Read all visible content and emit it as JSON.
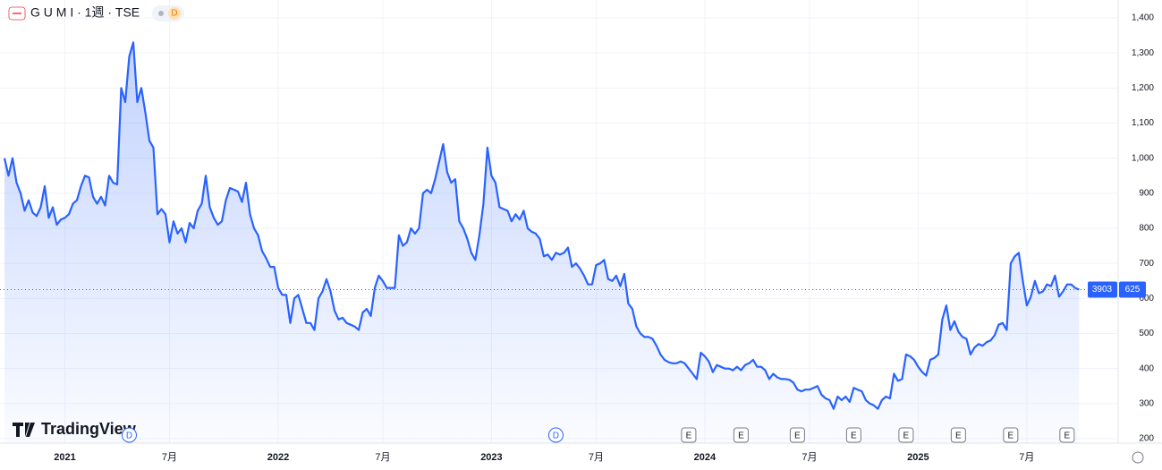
{
  "chart_data": {
    "type": "line",
    "title": "G U M I · 1週 · TSE",
    "interval_badge": "D",
    "symbol_code": "3903",
    "brand": "TradingView",
    "color": "#2962ff",
    "grid": true,
    "values": [
      1000,
      950,
      1000,
      930,
      900,
      850,
      880,
      845,
      835,
      860,
      920,
      830,
      860,
      810,
      825,
      830,
      840,
      870,
      880,
      920,
      950,
      945,
      890,
      870,
      890,
      865,
      950,
      930,
      925,
      1200,
      1160,
      1290,
      1330,
      1160,
      1200,
      1130,
      1050,
      1030,
      840,
      855,
      840,
      760,
      820,
      785,
      800,
      760,
      815,
      800,
      850,
      870,
      950,
      860,
      830,
      810,
      820,
      880,
      915,
      910,
      905,
      875,
      930,
      840,
      800,
      780,
      735,
      715,
      690,
      690,
      630,
      610,
      610,
      530,
      600,
      610,
      570,
      530,
      530,
      510,
      600,
      620,
      655,
      620,
      565,
      540,
      545,
      530,
      525,
      520,
      510,
      560,
      570,
      550,
      630,
      665,
      650,
      630,
      630,
      630,
      780,
      750,
      760,
      800,
      785,
      800,
      900,
      910,
      900,
      940,
      990,
      1040,
      960,
      930,
      940,
      820,
      800,
      770,
      730,
      710,
      780,
      870,
      1030,
      950,
      930,
      860,
      855,
      850,
      820,
      840,
      825,
      850,
      800,
      790,
      785,
      770,
      720,
      725,
      710,
      730,
      725,
      730,
      745,
      690,
      700,
      685,
      665,
      640,
      640,
      695,
      700,
      710,
      655,
      650,
      665,
      635,
      670,
      585,
      570,
      520,
      500,
      490,
      490,
      485,
      465,
      440,
      425,
      418,
      415,
      415,
      420,
      415,
      400,
      385,
      370,
      445,
      435,
      420,
      390,
      410,
      405,
      400,
      400,
      395,
      405,
      395,
      410,
      415,
      425,
      405,
      405,
      395,
      370,
      385,
      375,
      370,
      370,
      368,
      360,
      340,
      335,
      340,
      340,
      345,
      350,
      325,
      315,
      310,
      285,
      320,
      310,
      320,
      305,
      345,
      340,
      335,
      310,
      300,
      295,
      285,
      310,
      320,
      315,
      385,
      365,
      370,
      440,
      435,
      425,
      405,
      390,
      380,
      425,
      430,
      440,
      540,
      580,
      510,
      535,
      505,
      490,
      485,
      440,
      460,
      470,
      465,
      475,
      480,
      495,
      525,
      530,
      510,
      700,
      720,
      730,
      650,
      580,
      605,
      650,
      615,
      620,
      640,
      635,
      665,
      605,
      620,
      640,
      640,
      630,
      625
    ],
    "last_value": 625,
    "ylim": [
      200,
      1400
    ],
    "yticks": [
      200,
      300,
      400,
      500,
      600,
      700,
      800,
      900,
      {
        "value": 1000,
        "label": "1,000"
      },
      {
        "value": 1100,
        "label": "1,100"
      },
      {
        "value": 1200,
        "label": "1,200"
      },
      {
        "value": 1300,
        "label": "1,300"
      },
      {
        "value": 1400,
        "label": "1,400"
      }
    ],
    "xlim": [
      0,
      276.7
    ],
    "xticks": [
      {
        "value": 15,
        "label": "2021"
      },
      {
        "value": 41,
        "label": "7月"
      },
      {
        "value": 68,
        "label": "2022"
      },
      {
        "value": 94,
        "label": "7月"
      },
      {
        "value": 121,
        "label": "2023"
      },
      {
        "value": 147,
        "label": "7月"
      },
      {
        "value": 174,
        "label": "2024"
      },
      {
        "value": 200,
        "label": "7月"
      },
      {
        "value": 227,
        "label": "2025"
      },
      {
        "value": 254,
        "label": "7月"
      }
    ],
    "events": [
      {
        "x": 31,
        "label": "D"
      },
      {
        "x": 137,
        "label": "D"
      },
      {
        "x": 170,
        "label": "E"
      },
      {
        "x": 183,
        "label": "E"
      },
      {
        "x": 197,
        "label": "E"
      },
      {
        "x": 211,
        "label": "E"
      },
      {
        "x": 224,
        "label": "E"
      },
      {
        "x": 237,
        "label": "E"
      },
      {
        "x": 250,
        "label": "E"
      },
      {
        "x": 264,
        "label": "E"
      }
    ]
  }
}
